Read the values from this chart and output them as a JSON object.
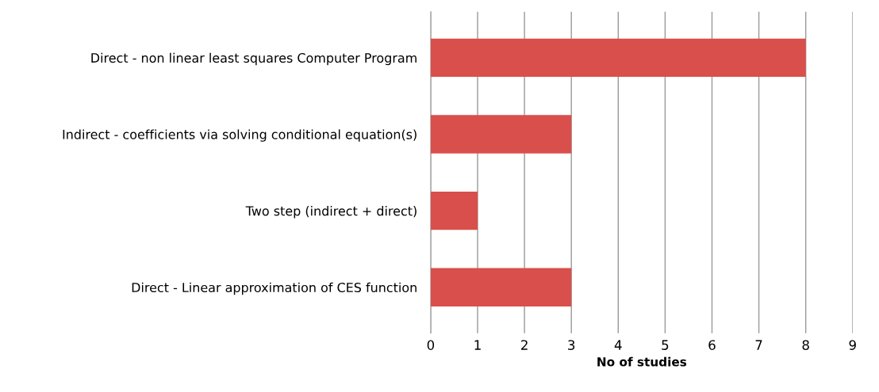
{
  "chart_data": {
    "type": "bar",
    "orientation": "horizontal",
    "xlabel": "No of studies",
    "categories": [
      "Direct - non linear least squares Computer Program",
      "Indirect - coefficients via solving conditional equation(s)",
      "Two step (indirect + direct)",
      "Direct - Linear approximation of CES function"
    ],
    "values": [
      8,
      3,
      1,
      3
    ],
    "color": "#d94f4b",
    "xlim": [
      0,
      9
    ],
    "xticks": [
      0,
      1,
      2,
      3,
      4,
      5,
      6,
      7,
      8,
      9
    ],
    "grid": "x",
    "legend": false
  }
}
